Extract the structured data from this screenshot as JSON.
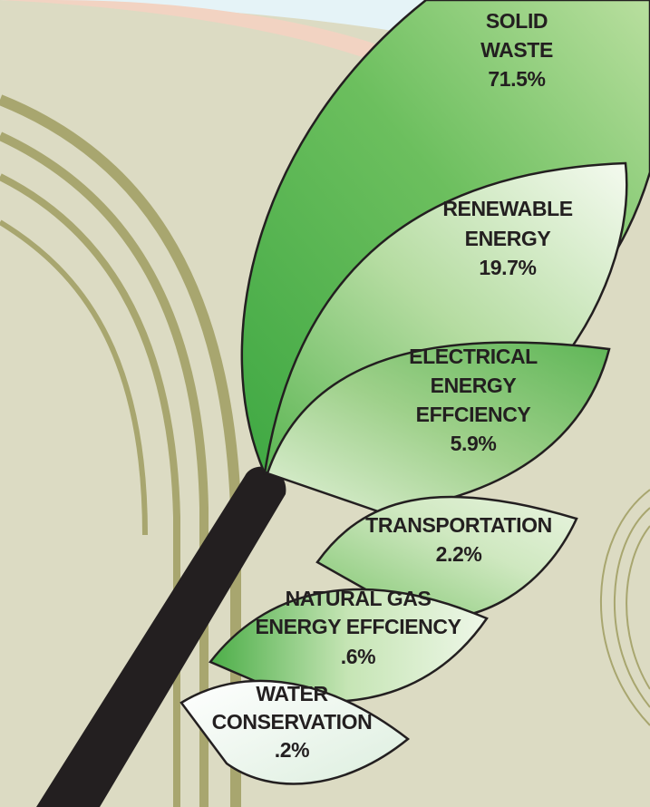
{
  "leaves": [
    {
      "lines": [
        "SOLID",
        "WASTE"
      ],
      "value": "71.5%"
    },
    {
      "lines": [
        "RENEWABLE",
        "ENERGY"
      ],
      "value": "19.7%"
    },
    {
      "lines": [
        "ELECTRICAL",
        "ENERGY",
        "EFFCIENCY"
      ],
      "value": "5.9%"
    },
    {
      "lines": [
        "TRANSPORTATION"
      ],
      "value": "2.2%"
    },
    {
      "lines": [
        "NATURAL GAS",
        "ENERGY EFFCIENCY"
      ],
      "value": ".6%"
    },
    {
      "lines": [
        "WATER",
        "CONSERVATION"
      ],
      "value": ".2%"
    }
  ]
}
